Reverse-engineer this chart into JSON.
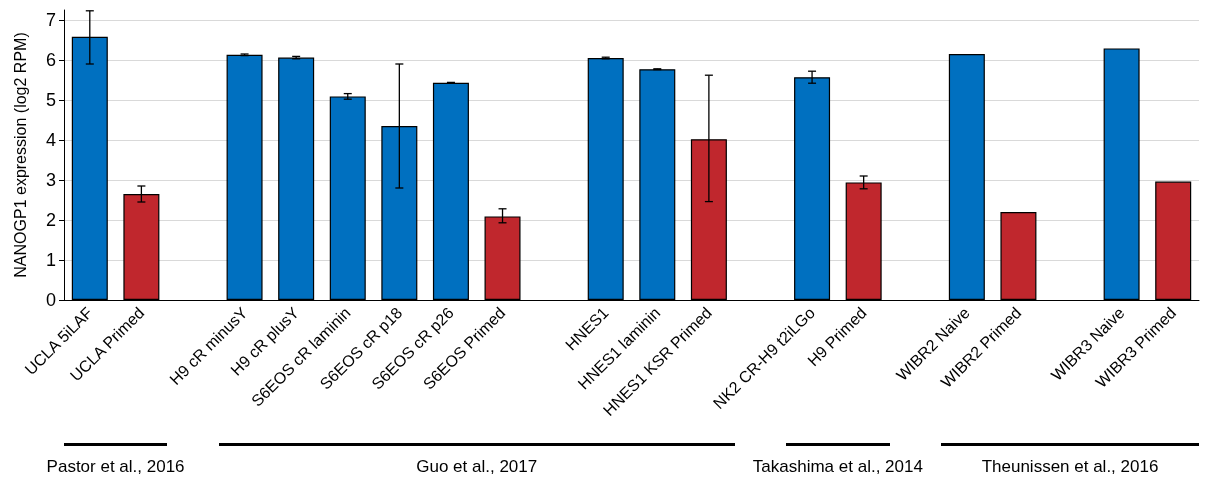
{
  "chart_data": {
    "type": "bar",
    "ylabel": "NANOGP1 expression (log2 RPM)",
    "categories": [
      "UCLA 5iLAF",
      "UCLA Primed",
      null,
      "H9 cR minusY",
      "H9 cR plusY",
      "S6EOS cR laminin",
      "S6EOS cR p18",
      "S6EOS cR p26",
      "S6EOS Primed",
      null,
      "HNES1",
      "HNES1 laminin",
      "HNES1 KSR Primed",
      null,
      "NK2 CR-H9 t2iLGo",
      "H9 Primed",
      null,
      "WIBR2 Naive",
      "WIBR2 Primed",
      null,
      "WIBR3 Naive",
      "WIBR3 Primed"
    ],
    "values": [
      6.58,
      2.65,
      null,
      6.13,
      6.06,
      5.09,
      4.35,
      5.43,
      2.09,
      null,
      6.05,
      5.77,
      4.02,
      null,
      5.57,
      2.94,
      null,
      6.15,
      2.2,
      null,
      6.29,
      2.96
    ],
    "colors": [
      "#0070c0",
      "#c0272d",
      null,
      "#0070c0",
      "#0070c0",
      "#0070c0",
      "#0070c0",
      "#0070c0",
      "#c0272d",
      null,
      "#0070c0",
      "#0070c0",
      "#c0272d",
      null,
      "#0070c0",
      "#c0272d",
      null,
      "#0070c0",
      "#c0272d",
      null,
      "#0070c0",
      "#c0272d"
    ],
    "errors": [
      [
        5.9,
        7.23
      ],
      [
        2.45,
        2.85
      ],
      null,
      [
        6.11,
        6.15
      ],
      [
        6.03,
        6.09
      ],
      [
        5.02,
        5.16
      ],
      [
        2.8,
        5.9
      ],
      [
        5.42,
        5.44
      ],
      [
        1.93,
        2.28
      ],
      null,
      [
        6.03,
        6.07
      ],
      [
        5.76,
        5.78
      ],
      [
        2.46,
        5.62
      ],
      null,
      [
        5.42,
        5.72
      ],
      [
        2.78,
        3.1
      ],
      null,
      null,
      null,
      null,
      null,
      null
    ],
    "ylim": [
      0,
      7.25
    ],
    "yticks": [
      0,
      1,
      2,
      3,
      4,
      5,
      6,
      7
    ],
    "grid": "y",
    "annotations": [
      "Pastor et al., 2016",
      "Guo et al., 2017",
      "Takashima et al., 2014",
      "Theunissen et al., 2016"
    ]
  }
}
